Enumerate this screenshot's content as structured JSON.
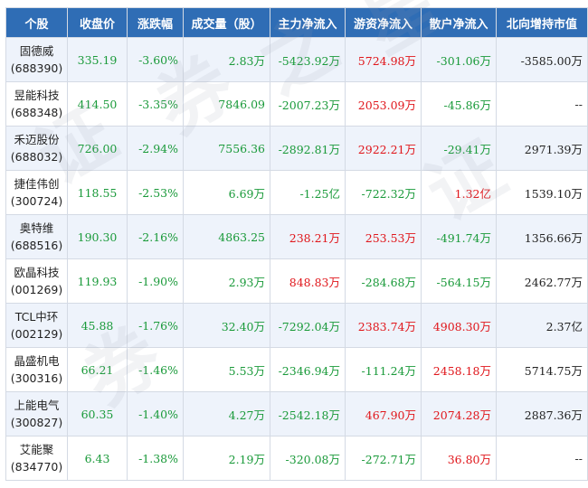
{
  "colors": {
    "header_bg": "#2f6db5",
    "positive": "#e0161b",
    "negative": "#1a9a3a",
    "stripe": "#eef3fb"
  },
  "watermark_text": [
    "证",
    "券",
    "之",
    "星",
    "证",
    "券"
  ],
  "headers": [
    "个股",
    "收盘价",
    "涨跌幅",
    "成交量（股）",
    "主力净流入",
    "游资净流入",
    "散户净流入",
    "北向增持市值"
  ],
  "rows": [
    {
      "name": "固德威",
      "code": "(688390)",
      "close": "335.19",
      "change": "-3.60%",
      "volume": "2.83万",
      "main": "-5423.92万",
      "hot": "5724.98万",
      "retail": "-301.06万",
      "north": "-3585.00万"
    },
    {
      "name": "昱能科技",
      "code": "(688348)",
      "close": "414.50",
      "change": "-3.35%",
      "volume": "7846.09",
      "main": "-2007.23万",
      "hot": "2053.09万",
      "retail": "-45.86万",
      "north": "--"
    },
    {
      "name": "禾迈股份",
      "code": "(688032)",
      "close": "726.00",
      "change": "-2.94%",
      "volume": "7556.36",
      "main": "-2892.81万",
      "hot": "2922.21万",
      "retail": "-29.41万",
      "north": "2971.39万"
    },
    {
      "name": "捷佳伟创",
      "code": "(300724)",
      "close": "118.55",
      "change": "-2.53%",
      "volume": "6.69万",
      "main": "-1.25亿",
      "hot": "-722.32万",
      "retail": "1.32亿",
      "north": "1539.10万"
    },
    {
      "name": "奥特维",
      "code": "(688516)",
      "close": "190.30",
      "change": "-2.16%",
      "volume": "4863.25",
      "main": "238.21万",
      "hot": "253.53万",
      "retail": "-491.74万",
      "north": "1356.66万"
    },
    {
      "name": "欧晶科技",
      "code": "(001269)",
      "close": "119.93",
      "change": "-1.90%",
      "volume": "2.93万",
      "main": "848.83万",
      "hot": "-284.68万",
      "retail": "-564.15万",
      "north": "2462.77万"
    },
    {
      "name": "TCL中环",
      "code": "(002129)",
      "close": "45.88",
      "change": "-1.76%",
      "volume": "32.40万",
      "main": "-7292.04万",
      "hot": "2383.74万",
      "retail": "4908.30万",
      "north": "2.37亿"
    },
    {
      "name": "晶盛机电",
      "code": "(300316)",
      "close": "66.21",
      "change": "-1.46%",
      "volume": "5.53万",
      "main": "-2346.94万",
      "hot": "-111.24万",
      "retail": "2458.18万",
      "north": "5714.75万"
    },
    {
      "name": "上能电气",
      "code": "(300827)",
      "close": "60.35",
      "change": "-1.40%",
      "volume": "4.27万",
      "main": "-2542.18万",
      "hot": "467.90万",
      "retail": "2074.28万",
      "north": "2887.36万"
    },
    {
      "name": "艾能聚",
      "code": "(834770)",
      "close": "6.43",
      "change": "-1.38%",
      "volume": "2.19万",
      "main": "-320.08万",
      "hot": "-272.71万",
      "retail": "36.80万",
      "north": "--"
    }
  ]
}
